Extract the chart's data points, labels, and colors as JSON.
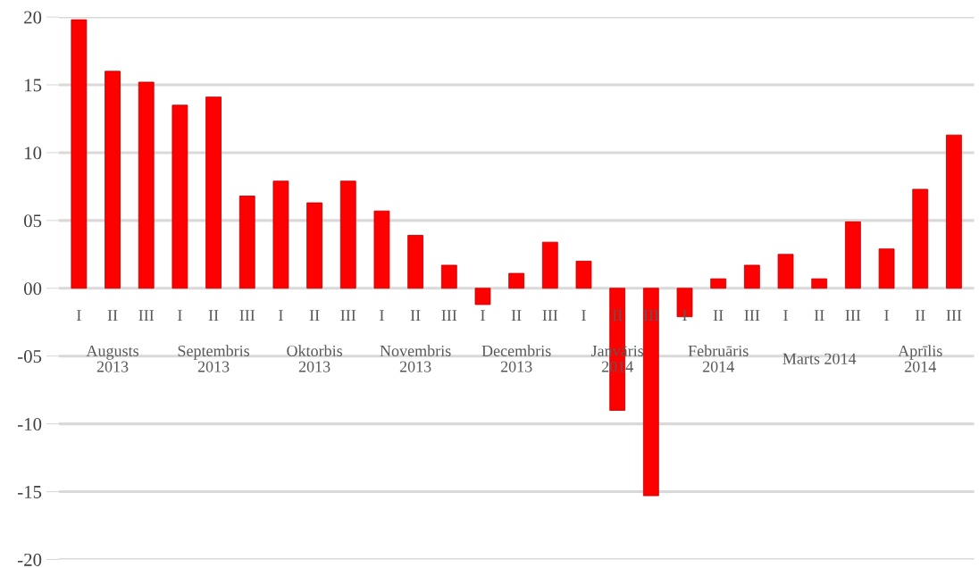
{
  "chart_data": {
    "type": "bar",
    "categories": [
      "I",
      "II",
      "III",
      "I",
      "II",
      "III",
      "I",
      "II",
      "III",
      "I",
      "II",
      "III",
      "I",
      "II",
      "III",
      "I",
      "II",
      "III",
      "I",
      "II",
      "III",
      "I",
      "II",
      "III",
      "I",
      "II",
      "III"
    ],
    "values": [
      19.8,
      16.0,
      15.2,
      13.5,
      14.1,
      6.8,
      7.9,
      6.3,
      7.9,
      5.7,
      3.9,
      1.7,
      -1.2,
      1.1,
      3.4,
      2.0,
      -9.0,
      -15.3,
      -2.1,
      0.7,
      1.7,
      2.5,
      0.7,
      4.9,
      2.9,
      7.3,
      11.3
    ],
    "color": "#ff0000",
    "ylim": [
      -20,
      20
    ],
    "yticks": [
      -20,
      -15,
      -10,
      {
        "value": -5,
        "label": "-05"
      },
      {
        "value": 0,
        "label": "00"
      },
      {
        "value": 5,
        "label": "05"
      },
      10,
      15,
      20
    ],
    "grid": "y",
    "annotations": [
      "Augusts\n2013",
      "Septembris\n2013",
      "Oktorbis\n2013",
      "Novembris\n2013",
      "Decembris\n2013",
      "Janvāris\n2014",
      "Februāris\n2014",
      "Marts 2014",
      "Aprīlis\n2014"
    ]
  }
}
